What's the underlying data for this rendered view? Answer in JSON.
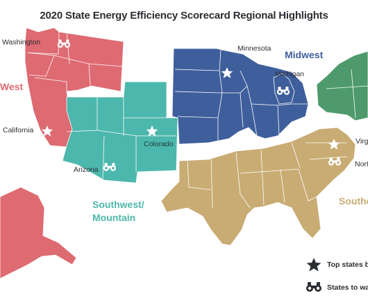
{
  "title": "2020 State Energy Efficiency Scorecard Regional Highlights",
  "regions": {
    "west": {
      "label": "West",
      "color": "#de6a72"
    },
    "southwest": {
      "label": "Southwest/\nMountain",
      "color": "#4cb7ac"
    },
    "midwest": {
      "label": "Midwest",
      "color": "#3f5f9c"
    },
    "southeast": {
      "label": "Southea",
      "color": "#c9ac74"
    },
    "northeast": {
      "color": "#4e9a6c"
    }
  },
  "states": {
    "washington": "Washington",
    "california": "California",
    "colorado": "Colorado",
    "arizona": "Arizona",
    "minnesota": "Minnesota",
    "michigan": "Michigan",
    "virginia": "Virg",
    "north_carolina": "North"
  },
  "legend": {
    "top_states": "Top states by",
    "states_to_watch": "States to watc"
  },
  "symbols": {
    "top_state": "star-icon",
    "watch_state": "binoculars-icon"
  }
}
